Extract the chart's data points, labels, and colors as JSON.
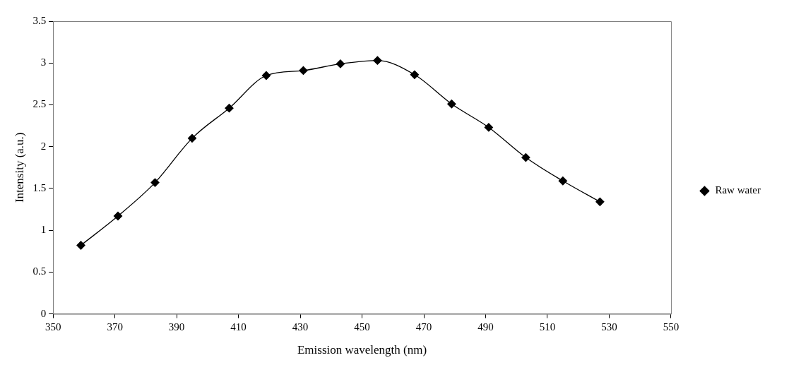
{
  "chart_data": {
    "type": "line",
    "xlabel": "Emission wavelength (nm)",
    "ylabel": "Intensity (a.u.)",
    "x": [
      359,
      371,
      383,
      395,
      407,
      419,
      431,
      443,
      455,
      467,
      479,
      491,
      503,
      515,
      527
    ],
    "series": [
      {
        "name": "Raw water",
        "color": "#000000",
        "values": [
          0.82,
          1.17,
          1.57,
          2.1,
          2.46,
          2.85,
          2.91,
          2.99,
          3.03,
          2.86,
          2.51,
          2.23,
          1.87,
          1.59,
          1.34
        ]
      }
    ],
    "xlim": [
      350,
      550
    ],
    "xticks": [
      350,
      370,
      390,
      410,
      430,
      450,
      470,
      490,
      510,
      530,
      550
    ],
    "ylim": [
      0,
      3.5
    ],
    "yticks": [
      0,
      0.5,
      1,
      1.5,
      2,
      2.5,
      3,
      3.5
    ],
    "grid": false,
    "legend": "right",
    "marker": "diamond",
    "line_style": "solid"
  }
}
